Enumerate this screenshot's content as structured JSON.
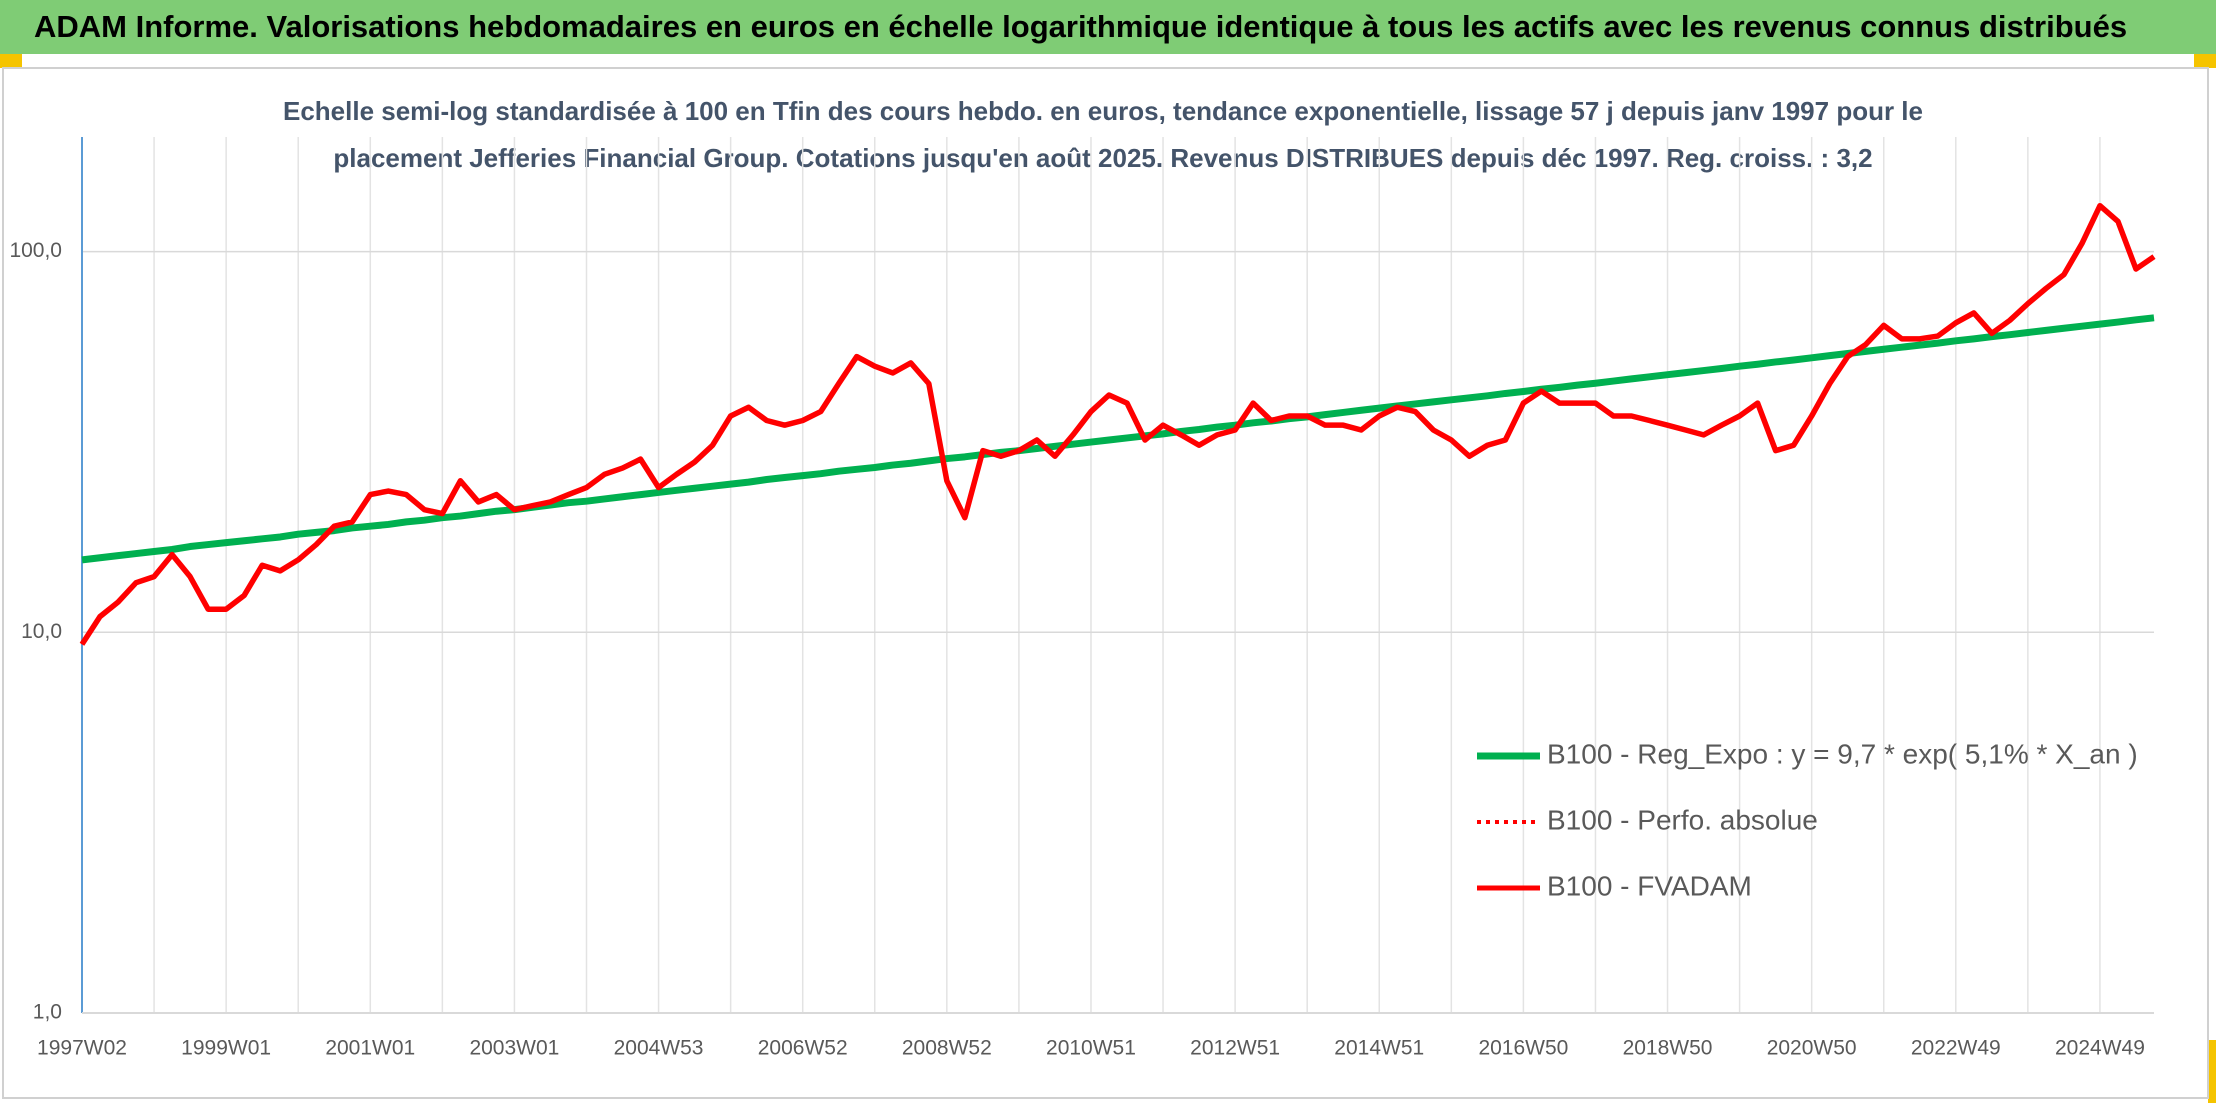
{
  "chart_data": {
    "type": "line",
    "title": "ADAM Informe. Valorisations hebdomadaires en euros en échelle logarithmique identique à tous les actifs avec les revenus connus distribués",
    "subtitle": [
      "Echelle semi-log standardisée à 100 en Tfin des cours hebdo. en euros, tendance exponentielle, lissage 57 j depuis janv 1997 pour le",
      "placement Jefferies Financial Group. Cotations jusqu'en août 2025. Revenus DISTRIBUES depuis déc 1997. Reg. croiss. : 3,2"
    ],
    "categories": [
      "1997W02",
      null,
      null,
      null,
      null,
      null,
      null,
      null,
      "1999W01",
      null,
      null,
      null,
      null,
      null,
      null,
      null,
      "2001W01",
      null,
      null,
      null,
      null,
      null,
      null,
      null,
      "2003W01",
      null,
      null,
      null,
      null,
      null,
      null,
      null,
      "2004W53",
      null,
      null,
      null,
      null,
      null,
      null,
      null,
      "2006W52",
      null,
      null,
      null,
      null,
      null,
      null,
      null,
      "2008W52",
      null,
      null,
      null,
      null,
      null,
      null,
      null,
      "2010W51",
      null,
      null,
      null,
      null,
      null,
      null,
      null,
      "2012W51",
      null,
      null,
      null,
      null,
      null,
      null,
      null,
      "2014W51",
      null,
      null,
      null,
      null,
      null,
      null,
      null,
      "2016W50",
      null,
      null,
      null,
      null,
      null,
      null,
      null,
      "2018W50",
      null,
      null,
      null,
      null,
      null,
      null,
      null,
      "2020W50",
      null,
      null,
      null,
      null,
      null,
      null,
      null,
      "2022W49",
      null,
      null,
      null,
      null,
      null,
      null,
      null,
      "2024W49",
      null,
      null,
      null
    ],
    "series": [
      {
        "name": "B100 - Reg_Expo : y = 9,7 * exp( 5,1% *  X_an )",
        "color": "#00b050",
        "style": "solid",
        "values": [
          15.5,
          15.7,
          15.9,
          16.1,
          16.3,
          16.5,
          16.8,
          17.0,
          17.2,
          17.4,
          17.6,
          17.8,
          18.1,
          18.3,
          18.5,
          18.8,
          19.0,
          19.2,
          19.5,
          19.7,
          20.0,
          20.2,
          20.5,
          20.8,
          21.0,
          21.3,
          21.6,
          21.9,
          22.1,
          22.4,
          22.7,
          23.0,
          23.3,
          23.6,
          23.9,
          24.2,
          24.5,
          24.8,
          25.2,
          25.5,
          25.8,
          26.1,
          26.5,
          26.8,
          27.1,
          27.5,
          27.8,
          28.2,
          28.6,
          28.9,
          29.3,
          29.7,
          30.0,
          30.4,
          30.8,
          31.2,
          31.6,
          32.0,
          32.4,
          32.8,
          33.2,
          33.7,
          34.1,
          34.6,
          35.0,
          35.5,
          35.9,
          36.4,
          36.8,
          37.3,
          37.8,
          38.3,
          38.8,
          39.3,
          39.8,
          40.3,
          40.8,
          41.3,
          41.8,
          42.4,
          42.9,
          43.5,
          44.0,
          44.6,
          45.1,
          45.7,
          46.3,
          46.9,
          47.5,
          48.1,
          48.7,
          49.3,
          50.0,
          50.6,
          51.3,
          51.9,
          52.6,
          53.3,
          54.0,
          54.7,
          55.4,
          56.1,
          56.8,
          57.5,
          58.3,
          59.0,
          59.8,
          60.5,
          61.3,
          62.1,
          62.9,
          63.7,
          64.5,
          65.3,
          66.2,
          67.0
        ]
      },
      {
        "name": "B100 - Perfo. absolue",
        "color": "#ff0000",
        "style": "dotted",
        "values": [
          9.3,
          11,
          12,
          13.5,
          14,
          16,
          14,
          11.5,
          11.5,
          12.5,
          15,
          14.5,
          15.5,
          17,
          19,
          19.5,
          23,
          23.5,
          23,
          21,
          20.5,
          25,
          22,
          23,
          21,
          21.5,
          22,
          23,
          24,
          26,
          27,
          28.5,
          24,
          26,
          28,
          31,
          37,
          39,
          36,
          35,
          36,
          38,
          45,
          53,
          50,
          48,
          51,
          45,
          25,
          20,
          30,
          29,
          30,
          32,
          29,
          33,
          38,
          42,
          40,
          32,
          35,
          33,
          31,
          33,
          34,
          40,
          36,
          37,
          37,
          35,
          35,
          34,
          37,
          39,
          38,
          34,
          32,
          29,
          31,
          32,
          40,
          43,
          40,
          40,
          40,
          37,
          37,
          36,
          35,
          34,
          33,
          35,
          37,
          40,
          30,
          31,
          37,
          45,
          53,
          57,
          64,
          59,
          59,
          60,
          65,
          69,
          61,
          66,
          73,
          80,
          87,
          105,
          132,
          120,
          90,
          97
        ]
      },
      {
        "name": "B100 - FVADAM",
        "color": "#ff0000",
        "style": "solid",
        "values": [
          9.3,
          11,
          12,
          13.5,
          14,
          16,
          14,
          11.5,
          11.5,
          12.5,
          15,
          14.5,
          15.5,
          17,
          19,
          19.5,
          23,
          23.5,
          23,
          21,
          20.5,
          25,
          22,
          23,
          21,
          21.5,
          22,
          23,
          24,
          26,
          27,
          28.5,
          24,
          26,
          28,
          31,
          37,
          39,
          36,
          35,
          36,
          38,
          45,
          53,
          50,
          48,
          51,
          45,
          25,
          20,
          30,
          29,
          30,
          32,
          29,
          33,
          38,
          42,
          40,
          32,
          35,
          33,
          31,
          33,
          34,
          40,
          36,
          37,
          37,
          35,
          35,
          34,
          37,
          39,
          38,
          34,
          32,
          29,
          31,
          32,
          40,
          43,
          40,
          40,
          40,
          37,
          37,
          36,
          35,
          34,
          33,
          35,
          37,
          40,
          30,
          31,
          37,
          45,
          53,
          57,
          64,
          59,
          59,
          60,
          65,
          69,
          61,
          66,
          73,
          80,
          87,
          105,
          132,
          120,
          90,
          97
        ]
      }
    ],
    "ylim": [
      1,
      200
    ],
    "yticks": [
      {
        "value": 1,
        "label": "1,0"
      },
      {
        "value": 10,
        "label": "10,0"
      },
      {
        "value": 100,
        "label": "100,0"
      }
    ],
    "log_scale": true,
    "grid": true,
    "legend": "lower right"
  }
}
